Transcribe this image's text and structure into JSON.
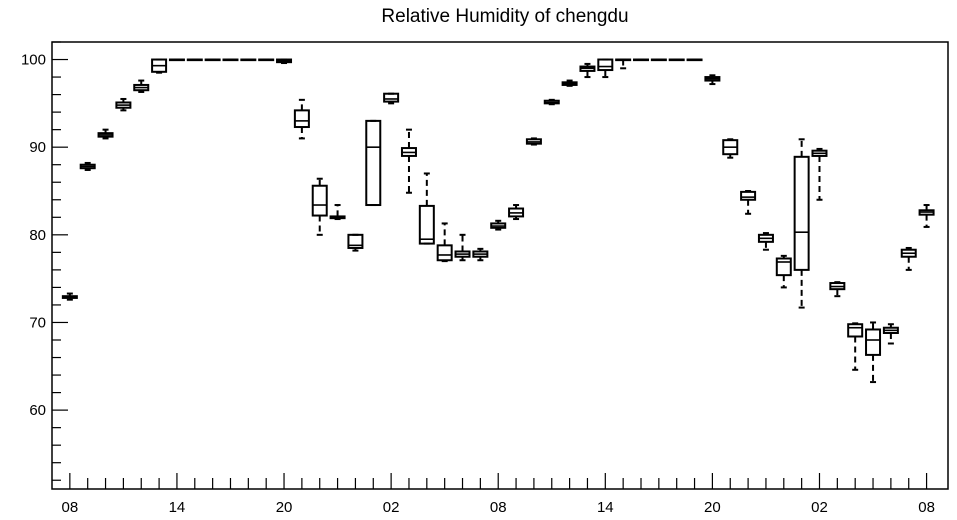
{
  "chart_data": {
    "type": "box",
    "title": "Relative Humidity of chengdu",
    "xlabel": "",
    "ylabel": "",
    "ylim": [
      51,
      102
    ],
    "y_ticks": [
      60,
      70,
      80,
      90,
      100
    ],
    "x_tick_labels": [
      "08",
      "14",
      "20",
      "02",
      "08",
      "14",
      "20",
      "02",
      "08"
    ],
    "x_tick_positions": [
      0,
      6,
      12,
      18,
      24,
      30,
      36,
      42,
      48
    ],
    "xlim": [
      -1,
      49.2
    ],
    "grid": false,
    "boxes": [
      {
        "x": 0,
        "whislo": 72.6,
        "q1": 72.8,
        "med": 72.9,
        "q3": 73.0,
        "whishi": 73.3
      },
      {
        "x": 1,
        "whislo": 87.4,
        "q1": 87.6,
        "med": 87.8,
        "q3": 88.0,
        "whishi": 88.2
      },
      {
        "x": 2,
        "whislo": 91.0,
        "q1": 91.2,
        "med": 91.4,
        "q3": 91.6,
        "whishi": 92.0
      },
      {
        "x": 3,
        "whislo": 94.2,
        "q1": 94.5,
        "med": 94.8,
        "q3": 95.1,
        "whishi": 95.5
      },
      {
        "x": 4,
        "whislo": 96.3,
        "q1": 96.5,
        "med": 96.8,
        "q3": 97.1,
        "whishi": 97.6
      },
      {
        "x": 5,
        "whislo": 98.5,
        "q1": 98.6,
        "med": 99.3,
        "q3": 100.0,
        "whishi": 100.0
      },
      {
        "x": 6,
        "whislo": 100.0,
        "q1": 100.0,
        "med": 100.0,
        "q3": 100.0,
        "whishi": 100.0
      },
      {
        "x": 7,
        "whislo": 100.0,
        "q1": 100.0,
        "med": 100.0,
        "q3": 100.0,
        "whishi": 100.0
      },
      {
        "x": 8,
        "whislo": 100.0,
        "q1": 100.0,
        "med": 100.0,
        "q3": 100.0,
        "whishi": 100.0
      },
      {
        "x": 9,
        "whislo": 100.0,
        "q1": 100.0,
        "med": 100.0,
        "q3": 100.0,
        "whishi": 100.0
      },
      {
        "x": 10,
        "whislo": 100.0,
        "q1": 100.0,
        "med": 100.0,
        "q3": 100.0,
        "whishi": 100.0
      },
      {
        "x": 11,
        "whislo": 100.0,
        "q1": 100.0,
        "med": 100.0,
        "q3": 100.0,
        "whishi": 100.0
      },
      {
        "x": 12,
        "whislo": 99.6,
        "q1": 99.7,
        "med": 99.8,
        "q3": 100.0,
        "whishi": 100.0
      },
      {
        "x": 13,
        "whislo": 91.0,
        "q1": 92.3,
        "med": 93.0,
        "q3": 94.2,
        "whishi": 95.4
      },
      {
        "x": 14,
        "whislo": 80.0,
        "q1": 82.2,
        "med": 83.4,
        "q3": 85.6,
        "whishi": 86.4
      },
      {
        "x": 15,
        "whislo": 81.8,
        "q1": 81.9,
        "med": 82.0,
        "q3": 82.1,
        "whishi": 83.4
      },
      {
        "x": 16,
        "whislo": 78.2,
        "q1": 78.5,
        "med": 78.8,
        "q3": 80.0,
        "whishi": 80.0
      },
      {
        "x": 17,
        "whislo": 83.4,
        "q1": 83.4,
        "med": 90.0,
        "q3": 93.0,
        "whishi": 93.0
      },
      {
        "x": 18,
        "whislo": 95.0,
        "q1": 95.2,
        "med": 95.5,
        "q3": 96.1,
        "whishi": 96.1
      },
      {
        "x": 19,
        "whislo": 84.8,
        "q1": 89.0,
        "med": 89.4,
        "q3": 89.9,
        "whishi": 92.0
      },
      {
        "x": 20,
        "whislo": 79.0,
        "q1": 79.0,
        "med": 79.5,
        "q3": 83.3,
        "whishi": 87.0
      },
      {
        "x": 21,
        "whislo": 77.0,
        "q1": 77.1,
        "med": 77.7,
        "q3": 78.8,
        "whishi": 81.3
      },
      {
        "x": 22,
        "whislo": 77.1,
        "q1": 77.5,
        "med": 77.8,
        "q3": 78.1,
        "whishi": 80.0
      },
      {
        "x": 23,
        "whislo": 77.1,
        "q1": 77.5,
        "med": 77.8,
        "q3": 78.1,
        "whishi": 78.4
      },
      {
        "x": 24,
        "whislo": 80.6,
        "q1": 80.8,
        "med": 81.0,
        "q3": 81.3,
        "whishi": 81.6
      },
      {
        "x": 25,
        "whislo": 81.8,
        "q1": 82.1,
        "med": 82.5,
        "q3": 83.0,
        "whishi": 83.4
      },
      {
        "x": 26,
        "whislo": 90.3,
        "q1": 90.4,
        "med": 90.6,
        "q3": 90.9,
        "whishi": 91.0
      },
      {
        "x": 27,
        "whislo": 94.9,
        "q1": 95.0,
        "med": 95.1,
        "q3": 95.3,
        "whishi": 95.4
      },
      {
        "x": 28,
        "whislo": 97.0,
        "q1": 97.1,
        "med": 97.3,
        "q3": 97.4,
        "whishi": 97.6
      },
      {
        "x": 29,
        "whislo": 98.0,
        "q1": 98.7,
        "med": 99.0,
        "q3": 99.2,
        "whishi": 99.5
      },
      {
        "x": 30,
        "whislo": 98.0,
        "q1": 98.8,
        "med": 99.2,
        "q3": 100.0,
        "whishi": 100.0
      },
      {
        "x": 31,
        "whislo": 99.0,
        "q1": 100.0,
        "med": 100.0,
        "q3": 100.0,
        "whishi": 100.0
      },
      {
        "x": 32,
        "whislo": 100.0,
        "q1": 100.0,
        "med": 100.0,
        "q3": 100.0,
        "whishi": 100.0
      },
      {
        "x": 33,
        "whislo": 100.0,
        "q1": 100.0,
        "med": 100.0,
        "q3": 100.0,
        "whishi": 100.0
      },
      {
        "x": 34,
        "whislo": 100.0,
        "q1": 100.0,
        "med": 100.0,
        "q3": 100.0,
        "whishi": 100.0
      },
      {
        "x": 35,
        "whislo": 100.0,
        "q1": 100.0,
        "med": 100.0,
        "q3": 100.0,
        "whishi": 100.0
      },
      {
        "x": 36,
        "whislo": 97.2,
        "q1": 97.6,
        "med": 97.8,
        "q3": 98.0,
        "whishi": 98.2
      },
      {
        "x": 37,
        "whislo": 88.8,
        "q1": 89.2,
        "med": 90.0,
        "q3": 90.8,
        "whishi": 90.9
      },
      {
        "x": 38,
        "whislo": 82.4,
        "q1": 84.0,
        "med": 84.3,
        "q3": 84.9,
        "whishi": 85.0
      },
      {
        "x": 39,
        "whislo": 78.3,
        "q1": 79.2,
        "med": 79.6,
        "q3": 80.0,
        "whishi": 80.2
      },
      {
        "x": 40,
        "whislo": 74.0,
        "q1": 75.4,
        "med": 76.9,
        "q3": 77.3,
        "whishi": 77.6
      },
      {
        "x": 41,
        "whislo": 71.7,
        "q1": 76.0,
        "med": 80.3,
        "q3": 88.9,
        "whishi": 90.9
      },
      {
        "x": 42,
        "whislo": 84.0,
        "q1": 89.0,
        "med": 89.3,
        "q3": 89.6,
        "whishi": 89.8
      },
      {
        "x": 43,
        "whislo": 73.0,
        "q1": 73.8,
        "med": 74.1,
        "q3": 74.5,
        "whishi": 74.6
      },
      {
        "x": 44,
        "whislo": 64.6,
        "q1": 68.4,
        "med": 69.4,
        "q3": 69.8,
        "whishi": 69.9
      },
      {
        "x": 45,
        "whislo": 63.2,
        "q1": 66.3,
        "med": 68.0,
        "q3": 69.2,
        "whishi": 70.0
      },
      {
        "x": 46,
        "whislo": 67.6,
        "q1": 68.8,
        "med": 69.1,
        "q3": 69.4,
        "whishi": 69.8
      },
      {
        "x": 47,
        "whislo": 76.0,
        "q1": 77.5,
        "med": 77.9,
        "q3": 78.3,
        "whishi": 78.5
      },
      {
        "x": 48,
        "whislo": 80.9,
        "q1": 82.3,
        "med": 82.6,
        "q3": 82.8,
        "whishi": 83.4
      }
    ]
  }
}
